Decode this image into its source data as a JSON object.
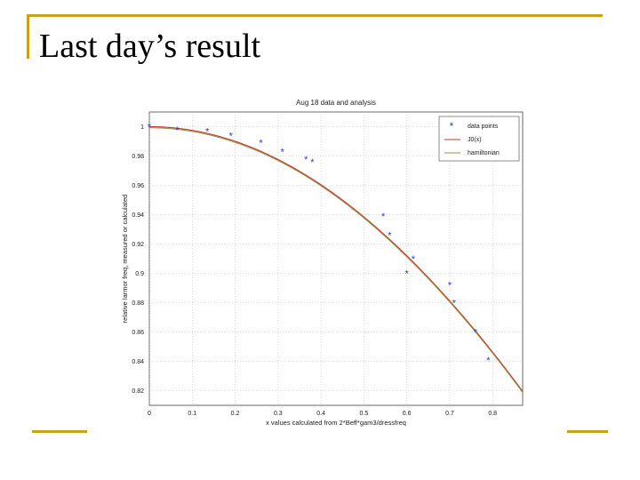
{
  "slide": {
    "title": "Last day’s result",
    "accent_color": "#c8a21a"
  },
  "chart_data": {
    "type": "scatter",
    "title": "Aug 18 data and analysis",
    "xlabel": "x values calculated from 2*Beff*gam3/dressfreq",
    "ylabel": "relative larmor freq, measured or calculated",
    "xlim": [
      0,
      0.87
    ],
    "ylim": [
      0.81,
      1.01
    ],
    "x_ticks": [
      "0",
      "0.1",
      "0.2",
      "0.3",
      "0.4",
      "0.5",
      "0.6",
      "0.7",
      "0.8"
    ],
    "y_ticks": [
      "1",
      "0.98",
      "0.96",
      "0.94",
      "0.92",
      "0.9",
      "0.88",
      "0.86",
      "0.84",
      "0.82"
    ],
    "grid": true,
    "legend_position": "top-right",
    "series": [
      {
        "name": "data points",
        "style": "markers",
        "marker": "*",
        "color": "#2a3ccf",
        "x": [
          0,
          0.065,
          0.135,
          0.19,
          0.26,
          0.31,
          0.365,
          0.38,
          0.545,
          0.56,
          0.6,
          0.615,
          0.7,
          0.71,
          0.76,
          0.79
        ],
        "y": [
          1.0,
          0.998,
          0.997,
          0.994,
          0.989,
          0.983,
          0.978,
          0.976,
          0.939,
          0.926,
          0.9,
          0.91,
          0.892,
          0.88,
          0.86,
          0.841
        ]
      },
      {
        "name": "J0(x)",
        "style": "line",
        "color": "#c0392b",
        "function": "besselJ0"
      },
      {
        "name": "hamiltonian",
        "style": "line",
        "color": "#a08a4a",
        "function": "besselJ0"
      }
    ]
  }
}
